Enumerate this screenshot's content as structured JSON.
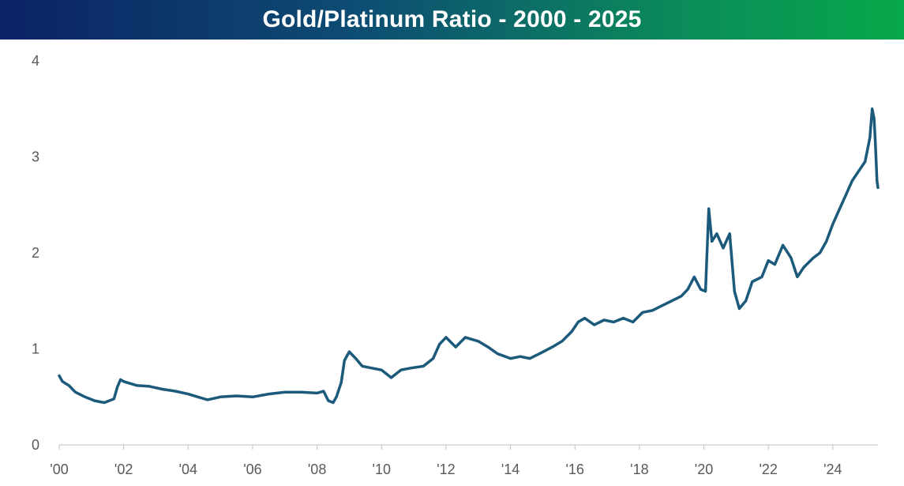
{
  "chart_data": {
    "type": "line",
    "title": "Gold/Platinum Ratio - 2000 - 2025",
    "xlabel": "",
    "ylabel": "",
    "ylim": [
      0,
      4
    ],
    "xlim": [
      2000,
      2025.4
    ],
    "yticks": [
      0,
      1,
      2,
      3,
      4
    ],
    "ytick_labels": [
      "0",
      "1",
      "2",
      "3",
      "4"
    ],
    "xticks": [
      2000,
      2002,
      2004,
      2006,
      2008,
      2010,
      2012,
      2014,
      2016,
      2018,
      2020,
      2022,
      2024
    ],
    "xtick_labels": [
      "'00",
      "'02",
      "'04",
      "'06",
      "'08",
      "'10",
      "'12",
      "'14",
      "'16",
      "'18",
      "'20",
      "'22",
      "'24"
    ],
    "grid": false,
    "series": [
      {
        "name": "Gold/Platinum Ratio",
        "color": "#1c5a7c",
        "points": [
          [
            2000.0,
            0.72
          ],
          [
            2000.1,
            0.66
          ],
          [
            2000.3,
            0.62
          ],
          [
            2000.5,
            0.55
          ],
          [
            2000.8,
            0.5
          ],
          [
            2001.1,
            0.46
          ],
          [
            2001.4,
            0.44
          ],
          [
            2001.7,
            0.48
          ],
          [
            2001.8,
            0.6
          ],
          [
            2001.9,
            0.68
          ],
          [
            2002.0,
            0.66
          ],
          [
            2002.4,
            0.62
          ],
          [
            2002.8,
            0.61
          ],
          [
            2003.2,
            0.58
          ],
          [
            2003.6,
            0.56
          ],
          [
            2004.0,
            0.53
          ],
          [
            2004.3,
            0.5
          ],
          [
            2004.6,
            0.47
          ],
          [
            2005.0,
            0.5
          ],
          [
            2005.5,
            0.51
          ],
          [
            2006.0,
            0.5
          ],
          [
            2006.5,
            0.53
          ],
          [
            2007.0,
            0.55
          ],
          [
            2007.5,
            0.55
          ],
          [
            2008.0,
            0.54
          ],
          [
            2008.2,
            0.56
          ],
          [
            2008.35,
            0.46
          ],
          [
            2008.5,
            0.44
          ],
          [
            2008.6,
            0.5
          ],
          [
            2008.75,
            0.65
          ],
          [
            2008.85,
            0.88
          ],
          [
            2009.0,
            0.97
          ],
          [
            2009.2,
            0.9
          ],
          [
            2009.4,
            0.82
          ],
          [
            2009.7,
            0.8
          ],
          [
            2010.0,
            0.78
          ],
          [
            2010.3,
            0.7
          ],
          [
            2010.6,
            0.78
          ],
          [
            2010.9,
            0.8
          ],
          [
            2011.3,
            0.82
          ],
          [
            2011.6,
            0.9
          ],
          [
            2011.8,
            1.05
          ],
          [
            2012.0,
            1.12
          ],
          [
            2012.3,
            1.02
          ],
          [
            2012.6,
            1.12
          ],
          [
            2013.0,
            1.08
          ],
          [
            2013.3,
            1.02
          ],
          [
            2013.6,
            0.95
          ],
          [
            2014.0,
            0.9
          ],
          [
            2014.3,
            0.92
          ],
          [
            2014.6,
            0.9
          ],
          [
            2014.9,
            0.95
          ],
          [
            2015.3,
            1.02
          ],
          [
            2015.6,
            1.08
          ],
          [
            2015.9,
            1.18
          ],
          [
            2016.1,
            1.28
          ],
          [
            2016.3,
            1.32
          ],
          [
            2016.6,
            1.25
          ],
          [
            2016.9,
            1.3
          ],
          [
            2017.2,
            1.28
          ],
          [
            2017.5,
            1.32
          ],
          [
            2017.8,
            1.28
          ],
          [
            2018.1,
            1.38
          ],
          [
            2018.4,
            1.4
          ],
          [
            2018.7,
            1.45
          ],
          [
            2019.0,
            1.5
          ],
          [
            2019.3,
            1.55
          ],
          [
            2019.5,
            1.62
          ],
          [
            2019.7,
            1.75
          ],
          [
            2019.9,
            1.62
          ],
          [
            2020.05,
            1.6
          ],
          [
            2020.15,
            2.46
          ],
          [
            2020.25,
            2.12
          ],
          [
            2020.4,
            2.2
          ],
          [
            2020.6,
            2.05
          ],
          [
            2020.8,
            2.2
          ],
          [
            2020.95,
            1.6
          ],
          [
            2021.1,
            1.42
          ],
          [
            2021.3,
            1.5
          ],
          [
            2021.5,
            1.7
          ],
          [
            2021.8,
            1.75
          ],
          [
            2022.0,
            1.92
          ],
          [
            2022.2,
            1.88
          ],
          [
            2022.45,
            2.08
          ],
          [
            2022.7,
            1.95
          ],
          [
            2022.9,
            1.75
          ],
          [
            2023.1,
            1.85
          ],
          [
            2023.4,
            1.95
          ],
          [
            2023.6,
            2.0
          ],
          [
            2023.8,
            2.12
          ],
          [
            2024.0,
            2.3
          ],
          [
            2024.2,
            2.45
          ],
          [
            2024.4,
            2.6
          ],
          [
            2024.6,
            2.75
          ],
          [
            2024.8,
            2.85
          ],
          [
            2025.0,
            2.95
          ],
          [
            2025.15,
            3.2
          ],
          [
            2025.22,
            3.5
          ],
          [
            2025.28,
            3.4
          ],
          [
            2025.32,
            3.15
          ],
          [
            2025.37,
            2.75
          ],
          [
            2025.4,
            2.68
          ]
        ]
      }
    ]
  }
}
